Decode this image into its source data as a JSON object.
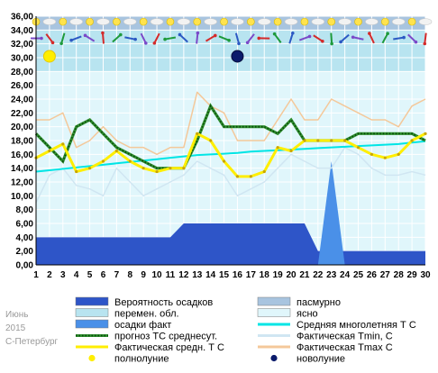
{
  "notes": {
    "month": "Июнь",
    "year": "2015",
    "city": "С-Петербург"
  },
  "chart_data": {
    "type": "line",
    "x": [
      1,
      2,
      3,
      4,
      5,
      6,
      7,
      8,
      9,
      10,
      11,
      12,
      13,
      14,
      15,
      16,
      17,
      18,
      19,
      20,
      21,
      22,
      23,
      24,
      25,
      26,
      27,
      28,
      29,
      30
    ],
    "xlim": [
      1,
      30
    ],
    "ylim": [
      0,
      36
    ],
    "y_ticks": [
      "0,00",
      "2,00",
      "4,00",
      "6,00",
      "8,00",
      "10,00",
      "12,00",
      "14,00",
      "16,00",
      "18,00",
      "20,00",
      "22,00",
      "24,00",
      "26,00",
      "28,00",
      "30,00",
      "32,00",
      "34,00",
      "36,00"
    ],
    "grid": true,
    "series": [
      {
        "name": "Вероятность осадков",
        "kind": "area",
        "color": "#2e55c8",
        "values": [
          4,
          4,
          4,
          4,
          4,
          4,
          4,
          4,
          4,
          4,
          4,
          6,
          6,
          6,
          6,
          6,
          6,
          6,
          6,
          6,
          6,
          2,
          2,
          2,
          2,
          2,
          2,
          2,
          2,
          2
        ]
      },
      {
        "name": "осадки факт",
        "kind": "area",
        "color": "#4a90e8",
        "values": [
          0,
          0,
          0,
          0,
          0,
          0,
          0,
          0,
          0,
          0,
          0,
          0,
          0,
          0,
          0,
          0,
          0,
          0,
          0,
          0,
          0,
          0,
          15,
          0,
          0,
          0,
          0,
          0,
          0,
          0
        ]
      },
      {
        "name": "прогноз ТС среднесут.",
        "kind": "line",
        "color": "#1e6b1e",
        "values": [
          19,
          17,
          15,
          20,
          21,
          19,
          17,
          16,
          15,
          14,
          14,
          14,
          18,
          23,
          20,
          20,
          20,
          20,
          19,
          21,
          18,
          18,
          18,
          18,
          19,
          19,
          19,
          19,
          19,
          18
        ]
      },
      {
        "name": "Средняя многолетняя Т С",
        "kind": "line",
        "color": "#00e5e5",
        "values": [
          13.5,
          13.7,
          13.9,
          14.1,
          14.3,
          14.5,
          14.7,
          14.9,
          15.1,
          15.3,
          15.5,
          15.7,
          15.9,
          16.0,
          16.1,
          16.2,
          16.4,
          16.5,
          16.6,
          16.7,
          16.8,
          16.9,
          17.0,
          17.1,
          17.2,
          17.3,
          17.4,
          17.5,
          17.7,
          17.9
        ]
      },
      {
        "name": "Фактическая средн. Т С",
        "kind": "line",
        "color": "#ffee00",
        "values": [
          15.5,
          16.5,
          17.5,
          13.5,
          14,
          15,
          16.5,
          15,
          14,
          13.5,
          14,
          14,
          19,
          18,
          15,
          12.8,
          12.8,
          13.5,
          17,
          16.5,
          18,
          18,
          18,
          18,
          17,
          16,
          15.5,
          16,
          18,
          19
        ]
      },
      {
        "name": "Фактическая Tmin, С",
        "kind": "line",
        "color": "#d0e6f2",
        "values": [
          9,
          13,
          14,
          11.5,
          11,
          10,
          14,
          12,
          10,
          11,
          12,
          13,
          15,
          14,
          13,
          10,
          11,
          12,
          14,
          16,
          15,
          14,
          14,
          17,
          16,
          14,
          13,
          13,
          13.5,
          13
        ]
      },
      {
        "name": "Фактическая Tmax С",
        "kind": "line",
        "color": "#f4c89a",
        "values": [
          21,
          21,
          22,
          17,
          18,
          20,
          18,
          17,
          17,
          16,
          17,
          17,
          25,
          23,
          22,
          18,
          18,
          18,
          21,
          24,
          21,
          21,
          24,
          23,
          22,
          21,
          21,
          20,
          23,
          24
        ]
      }
    ],
    "moon_phases": [
      {
        "label": "полнолуние",
        "day": 2,
        "color": "#ffee00"
      },
      {
        "label": "новолуние",
        "day": 16,
        "color": "#0b1b6b"
      }
    ],
    "legend": [
      {
        "label": "Вероятность осадков",
        "kind": "box",
        "color": "#2e55c8"
      },
      {
        "label": "пасмурно",
        "kind": "box",
        "color": "#a8c4df"
      },
      {
        "label": "перемен. обл.",
        "kind": "box",
        "color": "#b8e4f0"
      },
      {
        "label": "ясно",
        "kind": "box",
        "color": "#e0f6fb"
      },
      {
        "label": "осадки факт",
        "kind": "box",
        "color": "#4a90e8"
      },
      {
        "label": "Средняя многолетняя Т С",
        "kind": "line",
        "color": "#00e5e5"
      },
      {
        "label": "прогноз ТС среднесут.",
        "kind": "dotline",
        "color": "#1e6b1e"
      },
      {
        "label": "Фактическая Tmin, С",
        "kind": "line",
        "color": "#d0e6f2"
      },
      {
        "label": "Фактическая средн. Т С",
        "kind": "line",
        "color": "#ffee00"
      },
      {
        "label": "Фактическая Tmax С",
        "kind": "line",
        "color": "#f4c89a"
      },
      {
        "label": "полнолуние",
        "kind": "dot",
        "color": "#ffee00"
      },
      {
        "label": "новолуние",
        "kind": "dot",
        "color": "#0b1b6b"
      }
    ]
  }
}
